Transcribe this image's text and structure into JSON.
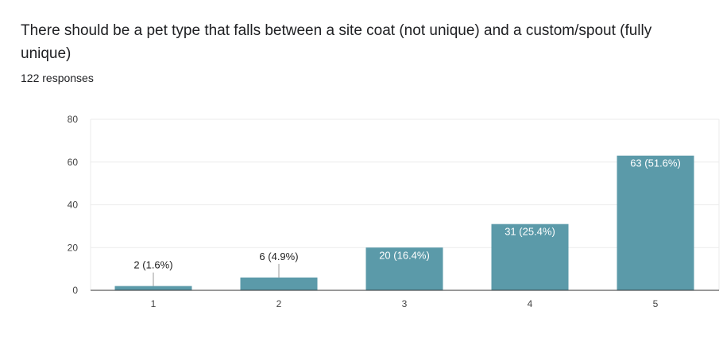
{
  "question": {
    "title": "There should be a pet type that falls between a site coat (not unique) and a custom/spout (fully unique)",
    "responses": "122 responses"
  },
  "colors": {
    "bar": "#5b9aa9",
    "grid": "#ebebeb",
    "axis": "#333333",
    "label_inside": "#ffffff",
    "label_outside": "#222222"
  },
  "chart_data": {
    "type": "bar",
    "title": "",
    "xlabel": "",
    "ylabel": "",
    "categories": [
      "1",
      "2",
      "3",
      "4",
      "5"
    ],
    "values": [
      2,
      6,
      20,
      31,
      63
    ],
    "data_labels": [
      "2 (1.6%)",
      "6 (4.9%)",
      "20 (16.4%)",
      "31 (25.4%)",
      "63 (51.6%)"
    ],
    "ylim": [
      0,
      80
    ],
    "yticks": [
      0,
      20,
      40,
      60,
      80
    ],
    "grid": true,
    "legend": "none"
  }
}
